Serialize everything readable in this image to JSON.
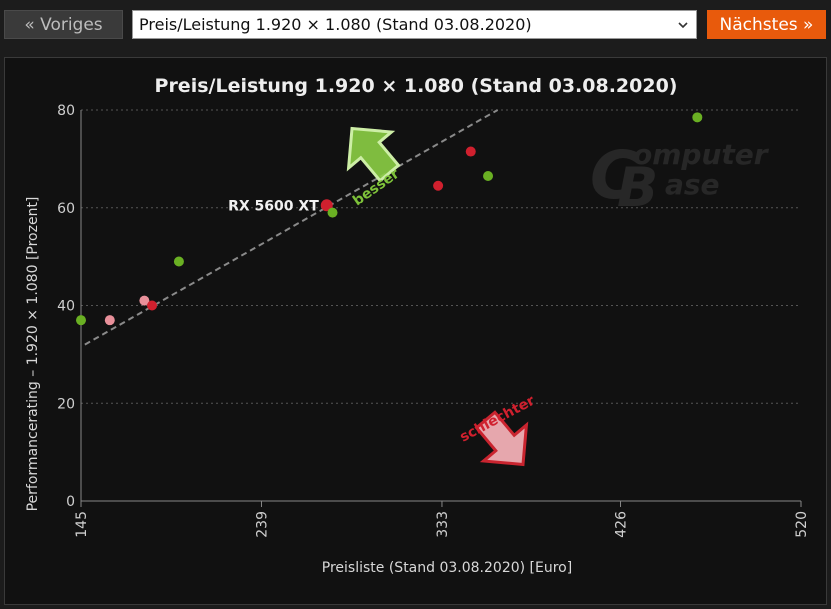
{
  "nav": {
    "prev_label": "« Voriges",
    "next_label": "Nächstes »",
    "selected": "Preis/Leistung 1.920 × 1.080 (Stand 03.08.2020)"
  },
  "chart_data": {
    "type": "scatter",
    "title": "Preis/Leistung 1.920 × 1.080 (Stand 03.08.2020)",
    "xlabel": "Preisliste (Stand 03.08.2020) [Euro]",
    "ylabel": "Performancerating – 1.920 × 1.080 [Prozent]",
    "xlim": [
      145,
      520
    ],
    "ylim": [
      0,
      80
    ],
    "xticks": [
      145,
      239,
      333,
      426,
      520
    ],
    "yticks": [
      0,
      20,
      40,
      60,
      80
    ],
    "grid": "horizontal dotted",
    "watermark": "ComputerBase",
    "colors": {
      "green": "#6ab023",
      "red": "#d0202e",
      "pink": "#e8909a",
      "trend": "#8a8a8a"
    },
    "points": [
      {
        "x": 145,
        "y": 37,
        "color": "green"
      },
      {
        "x": 160,
        "y": 37,
        "color": "pink"
      },
      {
        "x": 178,
        "y": 41,
        "color": "pink"
      },
      {
        "x": 182,
        "y": 40,
        "color": "red"
      },
      {
        "x": 196,
        "y": 49,
        "color": "green"
      },
      {
        "x": 273,
        "y": 60.5,
        "color": "red",
        "highlight": true,
        "label": "RX 5600 XT"
      },
      {
        "x": 276,
        "y": 59,
        "color": "green"
      },
      {
        "x": 331,
        "y": 64.5,
        "color": "red"
      },
      {
        "x": 348,
        "y": 71.5,
        "color": "red"
      },
      {
        "x": 357,
        "y": 66.5,
        "color": "green"
      },
      {
        "x": 466,
        "y": 78.5,
        "color": "green"
      }
    ],
    "trendline": {
      "x": [
        147,
        362
      ],
      "y": [
        32,
        80
      ]
    },
    "annotations": {
      "better": "besser",
      "worse": "schlechter"
    }
  }
}
